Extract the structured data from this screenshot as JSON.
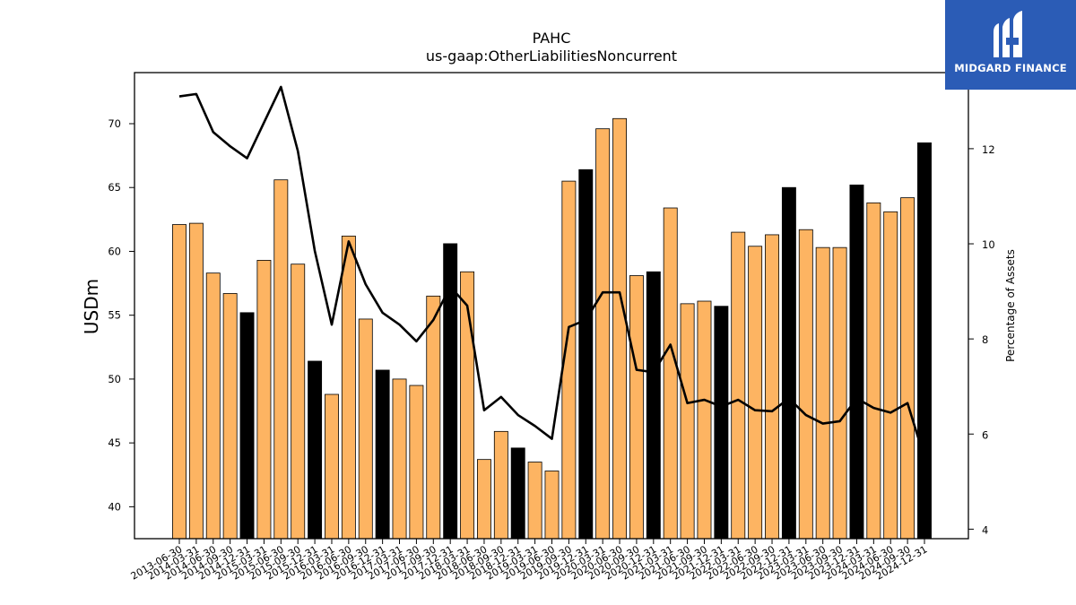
{
  "chart_data": {
    "type": "bar",
    "title": "PAHC",
    "subtitle": "us-gaap:OtherLiabilitiesNoncurrent",
    "ylabel": "USDm",
    "y2label": "Percentage of Assets",
    "ylim": [
      37.5,
      74
    ],
    "y2lim": [
      3.8,
      13.6
    ],
    "yticks": [
      40,
      45,
      50,
      55,
      60,
      65,
      70
    ],
    "y2ticks": [
      4,
      6,
      8,
      10,
      12
    ],
    "categories": [
      "2013-06-30",
      "2014-03-31",
      "2014-06-30",
      "2014-09-30",
      "2014-12-31",
      "2015-03-31",
      "2015-06-30",
      "2015-09-30",
      "2015-12-31",
      "2016-03-31",
      "2016-06-30",
      "2016-09-30",
      "2016-12-31",
      "2017-03-31",
      "2017-06-30",
      "2017-09-30",
      "2017-12-31",
      "2018-03-31",
      "2018-06-30",
      "2018-09-30",
      "2018-12-31",
      "2019-03-31",
      "2019-06-30",
      "2019-09-30",
      "2019-12-31",
      "2020-03-31",
      "2020-06-30",
      "2020-09-30",
      "2020-12-31",
      "2021-03-31",
      "2021-06-30",
      "2021-09-30",
      "2021-12-31",
      "2022-03-31",
      "2022-06-30",
      "2022-09-30",
      "2022-12-31",
      "2023-03-31",
      "2023-06-30",
      "2023-09-30",
      "2023-12-31",
      "2024-03-31",
      "2024-06-30",
      "2024-09-30",
      "2024-12-31"
    ],
    "series": [
      {
        "values": [
          62.1,
          62.2,
          58.3,
          56.7,
          55.2,
          59.3,
          65.6,
          59.0,
          51.4,
          48.8,
          61.2,
          54.7,
          50.7,
          50.0,
          49.5,
          56.5,
          60.6,
          58.4,
          43.7,
          45.9,
          44.6,
          43.5,
          42.8,
          65.5,
          66.4,
          69.6,
          70.4,
          58.1,
          58.4,
          63.4,
          55.9,
          56.1,
          55.7,
          61.5,
          60.4,
          61.3,
          65.0,
          61.7,
          60.3,
          60.3,
          65.2,
          63.8,
          63.1,
          64.2,
          68.5
        ],
        "highlight": [
          false,
          false,
          false,
          false,
          true,
          false,
          false,
          false,
          true,
          false,
          false,
          false,
          true,
          false,
          false,
          false,
          true,
          false,
          false,
          false,
          true,
          false,
          false,
          false,
          true,
          false,
          false,
          false,
          true,
          false,
          false,
          false,
          true,
          false,
          false,
          false,
          true,
          false,
          false,
          false,
          true,
          false,
          false,
          false,
          true
        ]
      },
      {
        "axis": "right",
        "type": "line",
        "values": [
          13.1,
          13.15,
          12.35,
          12.05,
          11.8,
          12.55,
          13.3,
          11.95,
          9.85,
          8.3,
          10.05,
          9.15,
          8.55,
          8.3,
          7.95,
          8.4,
          9.1,
          8.7,
          6.5,
          6.78,
          6.4,
          6.17,
          5.9,
          8.25,
          8.4,
          8.98,
          8.98,
          7.35,
          7.3,
          7.88,
          6.65,
          6.72,
          6.58,
          6.72,
          6.5,
          6.48,
          6.75,
          6.4,
          6.22,
          6.27,
          6.75,
          6.55,
          6.45,
          6.65,
          5.5
        ]
      }
    ],
    "colors": {
      "bar": "#fdb462",
      "bar_highlight": "#000000",
      "line": "#000000"
    }
  },
  "logo": {
    "text": "MIDGARD FINANCE",
    "bg": "#2b5cb6"
  }
}
